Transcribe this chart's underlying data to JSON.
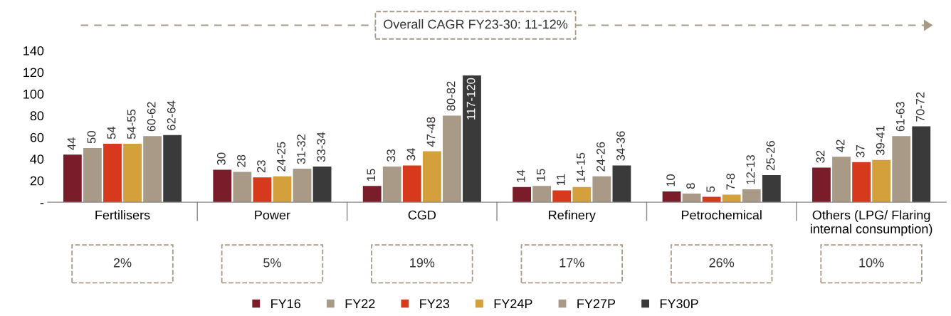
{
  "chart_data": {
    "type": "bar",
    "categories": [
      "Fertilisers",
      "Power",
      "CGD",
      "Refinery",
      "Petrochemical",
      "Others (LPG/ Flaring\ninternal consumption)"
    ],
    "series": [
      {
        "name": "FY16",
        "color": "#7b1c2a",
        "values": [
          44,
          30,
          15,
          14,
          10,
          32
        ],
        "value_labels": [
          "44",
          "30",
          "15",
          "14",
          "10",
          "32"
        ]
      },
      {
        "name": "FY22",
        "color": "#a89a87",
        "values": [
          50,
          28,
          33,
          15,
          8,
          42
        ],
        "value_labels": [
          "50",
          "28",
          "33",
          "15",
          "8",
          "42"
        ]
      },
      {
        "name": "FY23",
        "color": "#d7391c",
        "values": [
          54,
          23,
          34,
          11,
          5,
          37
        ],
        "value_labels": [
          "54",
          "23",
          "34",
          "11",
          "5",
          "37"
        ]
      },
      {
        "name": "FY24P",
        "color": "#d4a03c",
        "values": [
          54,
          24,
          47,
          14,
          7,
          39
        ],
        "value_labels": [
          "54-55",
          "24-25",
          "47-48",
          "14-15",
          "7-8",
          "39-41"
        ]
      },
      {
        "name": "FY27P",
        "color": "#a89a87",
        "values": [
          61,
          31,
          80,
          24,
          12,
          61
        ],
        "value_labels": [
          "60-62",
          "31-32",
          "80-82",
          "24-26",
          "12-13",
          "61-63"
        ]
      },
      {
        "name": "FY30P",
        "color": "#3a3a3a",
        "values": [
          62,
          33,
          117,
          34,
          25,
          70
        ],
        "value_labels": [
          "62-64",
          "33-34",
          "117-120",
          "34-36",
          "25-26",
          "70-72"
        ]
      }
    ],
    "ylim": [
      0,
      140
    ],
    "yticks": [
      {
        "value": 0,
        "label": "-"
      },
      20,
      40,
      60,
      80,
      100,
      120,
      140
    ],
    "legend": "bottom",
    "grid": false,
    "annotations": [
      "Overall CAGR FY23-30: 11-12%",
      "2%",
      "5%",
      "19%",
      "17%",
      "26%",
      "10%"
    ]
  }
}
